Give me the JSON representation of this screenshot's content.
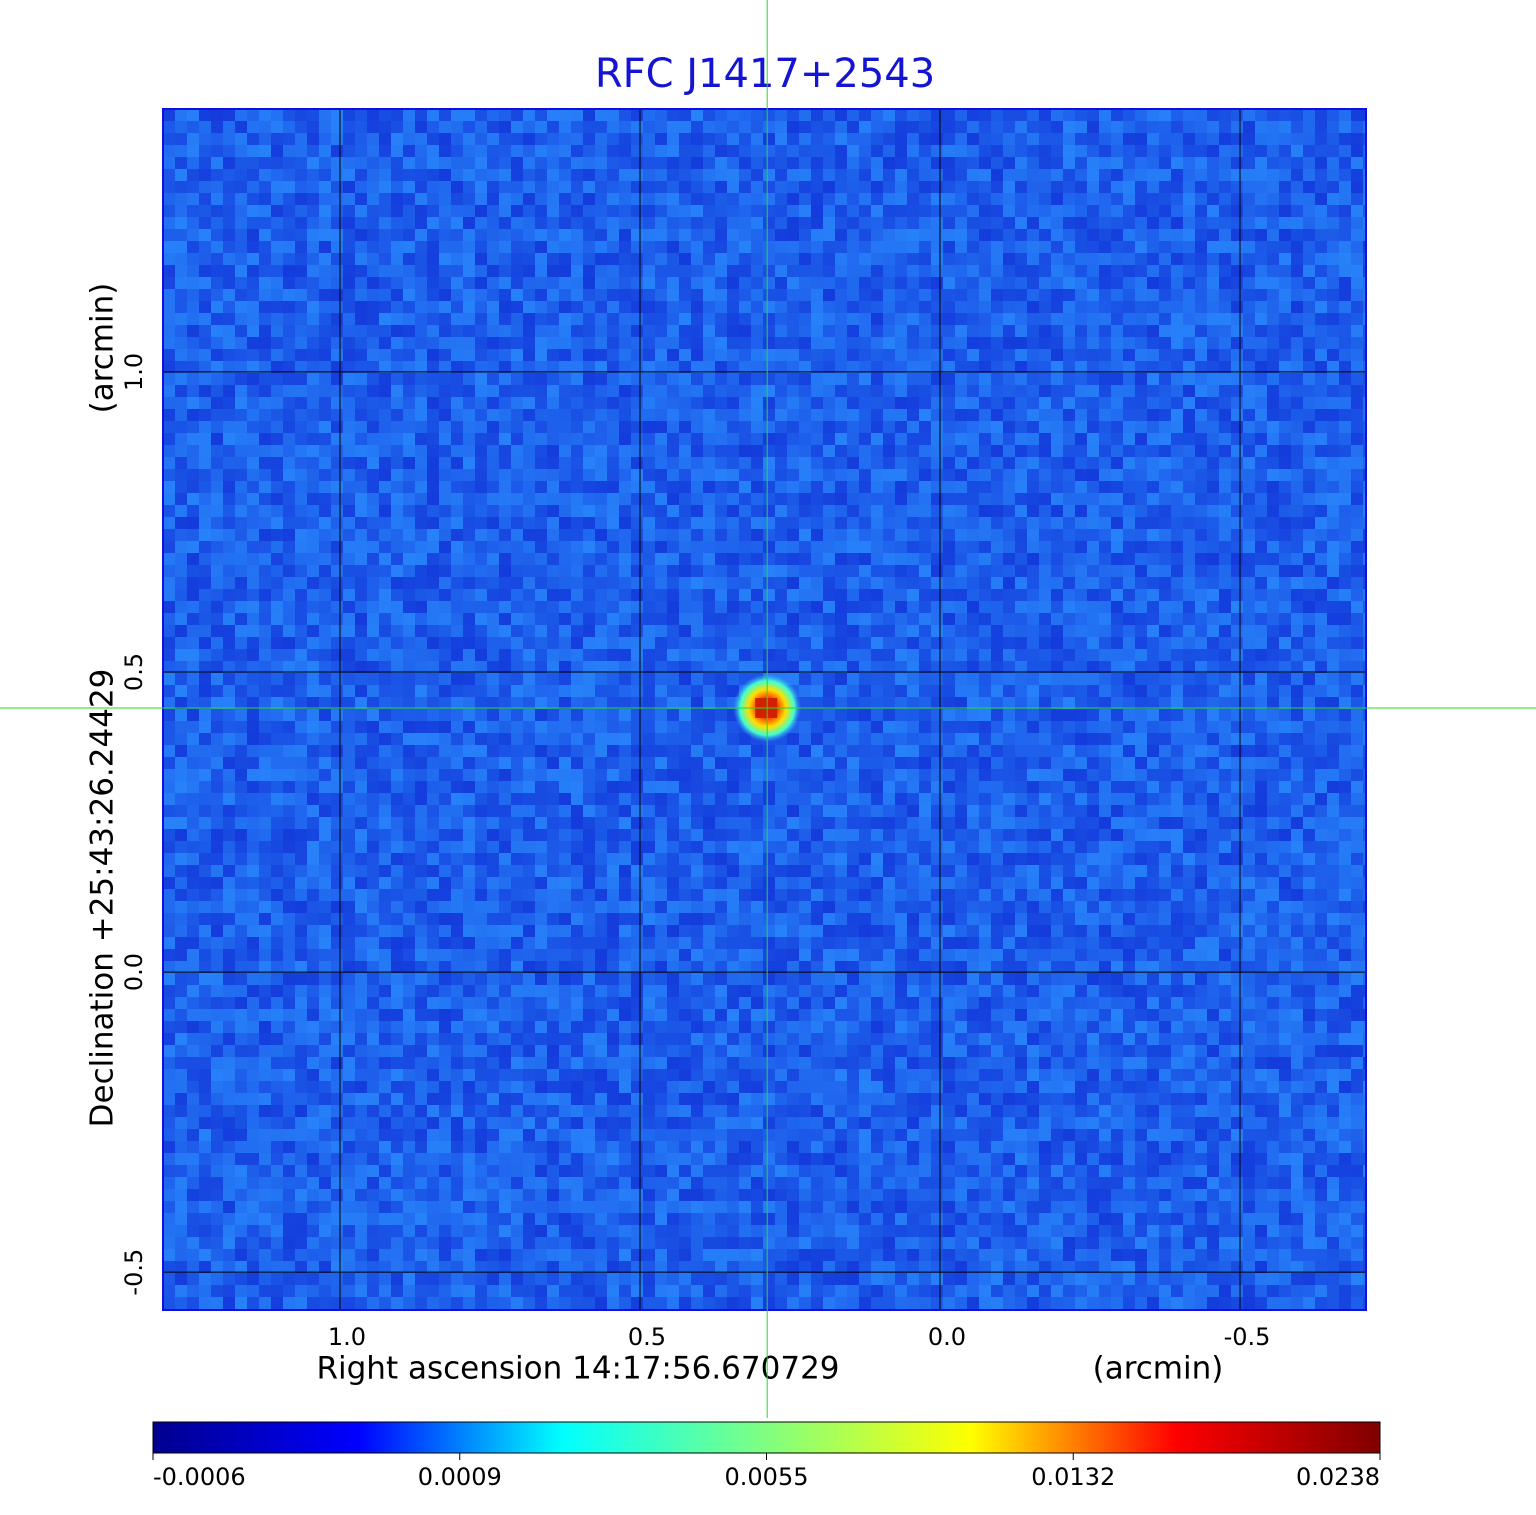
{
  "chart_data": {
    "type": "image",
    "title": "RFC J1417+2543",
    "x_label": "Right ascension  14:17:56.670729",
    "x_unit": "(arcmin)",
    "y_label": "Declination  +25:43:26.24429",
    "y_unit": "(arcmin)",
    "xlim": [
      1.295,
      -0.71
    ],
    "ylim": [
      -0.563,
      1.438
    ],
    "xticks": [
      {
        "value": 1,
        "label": "1.0"
      },
      0.5,
      {
        "value": 0,
        "label": "0.0"
      },
      -0.5
    ],
    "yticks": [
      {
        "value": -0.5,
        "label": "-0.5"
      },
      {
        "value": 0,
        "label": "0.0"
      },
      0.5,
      {
        "value": 1,
        "label": "1.0"
      }
    ],
    "grid": true,
    "crosshair": {
      "x": 0.288,
      "y": 0.44,
      "color": "#22dd22"
    },
    "colorbar": {
      "ticks": [
        -0.0006,
        0.0009,
        0.0055,
        0.0132,
        0.0238
      ],
      "colormap": [
        "#00008f",
        "#0000ff",
        "#00ffff",
        "#80ff80",
        "#ffff00",
        "#ff0000",
        "#800000"
      ]
    }
  }
}
